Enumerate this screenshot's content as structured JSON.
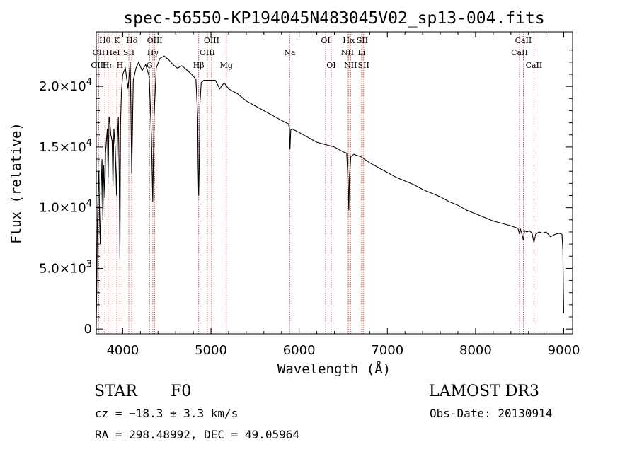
{
  "chart_data": {
    "type": "line",
    "title": "spec-56550-KP194045N483045V02_sp13-004.fits",
    "xlabel": "Wavelength (Å)",
    "ylabel": "Flux (relative)",
    "xlim": [
      3700,
      9100
    ],
    "ylim": [
      -400,
      24500
    ],
    "x_ticks": [
      {
        "value": 4000,
        "label": "4000"
      },
      {
        "value": 5000,
        "label": "5000"
      },
      {
        "value": 6000,
        "label": "6000"
      },
      {
        "value": 7000,
        "label": "7000"
      },
      {
        "value": 8000,
        "label": "8000"
      },
      {
        "value": 9000,
        "label": "9000"
      }
    ],
    "y_ticks": [
      {
        "value": 0,
        "mantissa": "0",
        "exp": ""
      },
      {
        "value": 5000,
        "mantissa": "5.0×10",
        "exp": "3"
      },
      {
        "value": 10000,
        "mantissa": "1.0×10",
        "exp": "4"
      },
      {
        "value": 15000,
        "mantissa": "1.5×10",
        "exp": "4"
      },
      {
        "value": 20000,
        "mantissa": "2.0×10",
        "exp": "4"
      }
    ],
    "series": [
      {
        "name": "flux",
        "x": [
          3700,
          3705,
          3712,
          3720,
          3730,
          3738,
          3745,
          3755,
          3765,
          3775,
          3785,
          3797,
          3805,
          3815,
          3825,
          3835,
          3845,
          3855,
          3865,
          3880,
          3889,
          3900,
          3915,
          3930,
          3940,
          3950,
          3960,
          3968,
          3975,
          3985,
          4000,
          4030,
          4060,
          4085,
          4102,
          4120,
          4150,
          4180,
          4220,
          4260,
          4300,
          4325,
          4340,
          4355,
          4380,
          4420,
          4470,
          4520,
          4570,
          4620,
          4670,
          4720,
          4780,
          4830,
          4850,
          4855,
          4861,
          4868,
          4875,
          4890,
          4920,
          4960,
          5000,
          5050,
          5100,
          5150,
          5200,
          5300,
          5400,
          5500,
          5600,
          5700,
          5800,
          5880,
          5890,
          5896,
          5905,
          5920,
          6000,
          6100,
          6200,
          6300,
          6400,
          6500,
          6540,
          6555,
          6563,
          6570,
          6585,
          6620,
          6700,
          6800,
          6900,
          7000,
          7100,
          7200,
          7300,
          7400,
          7500,
          7600,
          7700,
          7800,
          7900,
          8000,
          8100,
          8200,
          8300,
          8400,
          8480,
          8500,
          8510,
          8520,
          8530,
          8542,
          8555,
          8580,
          8610,
          8640,
          8662,
          8680,
          8720,
          8760,
          8800,
          8850,
          8900,
          8950,
          8980,
          8990,
          8995,
          9000
        ],
        "y": [
          300,
          3000,
          8500,
          11000,
          13000,
          9000,
          7000,
          11500,
          14000,
          9000,
          13500,
          10800,
          14500,
          15500,
          16500,
          12500,
          17500,
          17000,
          16000,
          15500,
          11800,
          16500,
          15000,
          11000,
          15500,
          17500,
          13000,
          5800,
          16800,
          19500,
          21000,
          21500,
          19800,
          22000,
          12800,
          20500,
          21500,
          22000,
          21300,
          21800,
          20800,
          16000,
          10500,
          17500,
          21500,
          22300,
          22500,
          22200,
          21800,
          21500,
          21700,
          21400,
          21000,
          20600,
          17500,
          13500,
          11000,
          13800,
          18500,
          20300,
          20500,
          20500,
          20500,
          20500,
          19800,
          20300,
          19800,
          19400,
          18800,
          18400,
          18000,
          17600,
          17200,
          16900,
          16500,
          14800,
          16400,
          16500,
          16200,
          15800,
          15400,
          15200,
          15000,
          14600,
          14500,
          12000,
          9800,
          12500,
          14200,
          14400,
          14200,
          13700,
          13300,
          12900,
          12500,
          12200,
          11900,
          11500,
          11200,
          10900,
          10500,
          10200,
          9800,
          9500,
          9200,
          8900,
          8700,
          8500,
          8300,
          7800,
          8200,
          8000,
          7700,
          7300,
          8100,
          8000,
          8100,
          7900,
          7100,
          7800,
          8000,
          7900,
          8000,
          7600,
          7800,
          7900,
          7800,
          6500,
          3500,
          1300
        ]
      }
    ],
    "line_labels": [
      {
        "text": "Hθ",
        "wavelength": 3798,
        "row": 1
      },
      {
        "text": "OII",
        "wavelength": 3727,
        "row": 2
      },
      {
        "text": "OIII",
        "wavelength": 3727,
        "row": 3
      },
      {
        "text": "K",
        "wavelength": 3934,
        "row": 1
      },
      {
        "text": "HeI",
        "wavelength": 3889,
        "row": 2
      },
      {
        "text": "Hη",
        "wavelength": 3835,
        "row": 3
      },
      {
        "text": "Hδ",
        "wavelength": 4102,
        "row": 1
      },
      {
        "text": "SII",
        "wavelength": 4069,
        "row": 2
      },
      {
        "text": "H",
        "wavelength": 3968,
        "row": 3
      },
      {
        "text": "OIII",
        "wavelength": 4363,
        "row": 1
      },
      {
        "text": "Hγ",
        "wavelength": 4341,
        "row": 2
      },
      {
        "text": "G",
        "wavelength": 4304,
        "row": 3
      },
      {
        "text": "OIII",
        "wavelength": 5007,
        "row": 1
      },
      {
        "text": "OIII",
        "wavelength": 4959,
        "row": 2
      },
      {
        "text": "Hβ",
        "wavelength": 4861,
        "row": 3
      },
      {
        "text": "Mg",
        "wavelength": 5175,
        "row": 3
      },
      {
        "text": "Na",
        "wavelength": 5893,
        "row": 2
      },
      {
        "text": "OI",
        "wavelength": 6300,
        "row": 1
      },
      {
        "text": "OI",
        "wavelength": 6363,
        "row": 3
      },
      {
        "text": "Hα",
        "wavelength": 6563,
        "row": 1
      },
      {
        "text": "SII",
        "wavelength": 6716,
        "row": 1
      },
      {
        "text": "NII",
        "wavelength": 6548,
        "row": 2
      },
      {
        "text": "Li",
        "wavelength": 6708,
        "row": 2
      },
      {
        "text": "NII",
        "wavelength": 6583,
        "row": 3
      },
      {
        "text": "SII",
        "wavelength": 6731,
        "row": 3
      },
      {
        "text": "CaII",
        "wavelength": 8542,
        "row": 1
      },
      {
        "text": "CaII",
        "wavelength": 8498,
        "row": 2
      },
      {
        "text": "CaII",
        "wavelength": 8662,
        "row": 3
      }
    ],
    "line_markers": [
      3727,
      3798,
      3835,
      3889,
      3934,
      3968,
      4069,
      4102,
      4304,
      4341,
      4363,
      4861,
      4959,
      5007,
      5175,
      5893,
      6300,
      6363,
      6548,
      6563,
      6583,
      6708,
      6716,
      6731,
      8498,
      8542,
      8662
    ],
    "colors": {
      "spectrum": "#000000",
      "marker": "#c0392b",
      "axes": "#000000"
    }
  },
  "info": {
    "object_type": "STAR",
    "subclass": "F0",
    "redshift": "cz = −18.3 ± 3.3 km/s",
    "coords": "RA = 298.48992, DEC =  49.05964",
    "survey": "LAMOST DR3",
    "obs_date": "Obs-Date: 20130914"
  }
}
